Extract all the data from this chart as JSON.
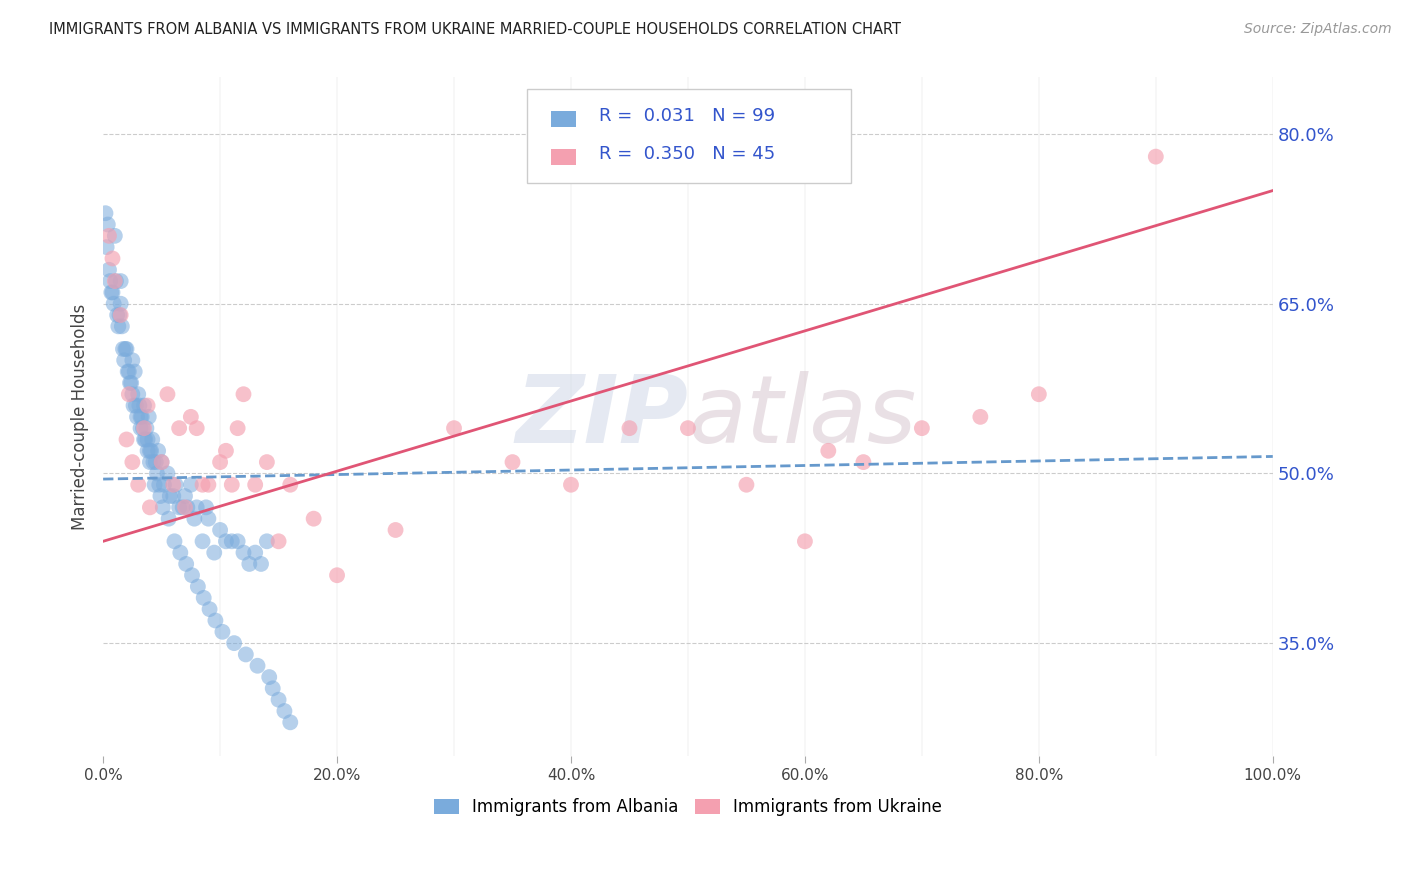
{
  "title": "IMMIGRANTS FROM ALBANIA VS IMMIGRANTS FROM UKRAINE MARRIED-COUPLE HOUSEHOLDS CORRELATION CHART",
  "source": "Source: ZipAtlas.com",
  "ylabel": "Married-couple Households",
  "xlabel": "",
  "xlim": [
    0,
    100
  ],
  "ylim": [
    25,
    85
  ],
  "right_yticks": [
    35.0,
    50.0,
    65.0,
    80.0
  ],
  "background_color": "#ffffff",
  "watermark_zip": "ZIP",
  "watermark_atlas": "atlas",
  "legend_R_albania": "0.031",
  "legend_N_albania": "99",
  "legend_R_ukraine": "0.350",
  "legend_N_ukraine": "45",
  "albania_color": "#7aabdc",
  "ukraine_color": "#f4a0b0",
  "albania_line_color": "#6699cc",
  "ukraine_line_color": "#e05575",
  "grid_color": "#cccccc",
  "legend_text_color": "#3355cc",
  "albania_line_x": [
    0,
    100
  ],
  "albania_line_y": [
    49.5,
    51.5
  ],
  "ukraine_line_x": [
    0,
    100
  ],
  "ukraine_line_y": [
    44.0,
    75.0
  ],
  "albania_scatter_x": [
    0.2,
    0.3,
    0.5,
    0.6,
    0.7,
    0.8,
    0.9,
    1.0,
    1.1,
    1.2,
    1.3,
    1.4,
    1.5,
    1.5,
    1.6,
    1.7,
    1.8,
    1.9,
    2.0,
    2.1,
    2.2,
    2.3,
    2.4,
    2.5,
    2.5,
    2.6,
    2.7,
    2.8,
    2.9,
    3.0,
    3.1,
    3.2,
    3.2,
    3.3,
    3.4,
    3.5,
    3.5,
    3.6,
    3.7,
    3.8,
    3.8,
    3.9,
    4.0,
    4.0,
    4.1,
    4.2,
    4.3,
    4.4,
    4.5,
    4.6,
    4.7,
    4.8,
    4.9,
    5.0,
    5.1,
    5.2,
    5.5,
    5.6,
    5.7,
    6.0,
    6.1,
    6.2,
    6.5,
    6.6,
    6.8,
    7.0,
    7.1,
    7.2,
    7.5,
    7.6,
    7.8,
    8.0,
    8.1,
    8.5,
    8.6,
    8.8,
    9.0,
    9.1,
    9.5,
    9.6,
    10.0,
    10.2,
    10.5,
    11.0,
    11.2,
    11.5,
    12.0,
    12.2,
    12.5,
    13.0,
    13.2,
    13.5,
    14.0,
    14.2,
    14.5,
    15.0,
    15.5,
    16.0,
    0.4
  ],
  "albania_scatter_y": [
    73,
    70,
    68,
    67,
    66,
    66,
    65,
    71,
    67,
    64,
    63,
    64,
    67,
    65,
    63,
    61,
    60,
    61,
    61,
    59,
    59,
    58,
    58,
    60,
    57,
    56,
    59,
    56,
    55,
    57,
    56,
    55,
    54,
    55,
    54,
    56,
    53,
    53,
    54,
    53,
    52,
    55,
    51,
    52,
    52,
    53,
    51,
    49,
    51,
    50,
    52,
    49,
    48,
    51,
    47,
    49,
    50,
    46,
    48,
    48,
    44,
    49,
    47,
    43,
    47,
    48,
    42,
    47,
    49,
    41,
    46,
    47,
    40,
    44,
    39,
    47,
    46,
    38,
    43,
    37,
    45,
    36,
    44,
    44,
    35,
    44,
    43,
    34,
    42,
    43,
    33,
    42,
    44,
    32,
    31,
    30,
    29,
    28,
    72
  ],
  "ukraine_scatter_x": [
    0.5,
    0.8,
    1.0,
    1.5,
    2.0,
    2.5,
    3.0,
    3.5,
    4.0,
    5.0,
    5.5,
    6.0,
    6.5,
    7.0,
    8.0,
    9.0,
    10.0,
    10.5,
    11.0,
    11.5,
    12.0,
    13.0,
    14.0,
    15.0,
    16.0,
    18.0,
    20.0,
    25.0,
    30.0,
    35.0,
    40.0,
    45.0,
    50.0,
    55.0,
    60.0,
    65.0,
    70.0,
    75.0,
    80.0,
    90.0,
    2.2,
    3.8,
    7.5,
    8.5,
    62.0
  ],
  "ukraine_scatter_y": [
    71,
    69,
    67,
    64,
    53,
    51,
    49,
    54,
    47,
    51,
    57,
    49,
    54,
    47,
    54,
    49,
    51,
    52,
    49,
    54,
    57,
    49,
    51,
    44,
    49,
    46,
    41,
    45,
    54,
    51,
    49,
    54,
    54,
    49,
    44,
    51,
    54,
    55,
    57,
    78,
    57,
    56,
    55,
    49,
    52
  ]
}
